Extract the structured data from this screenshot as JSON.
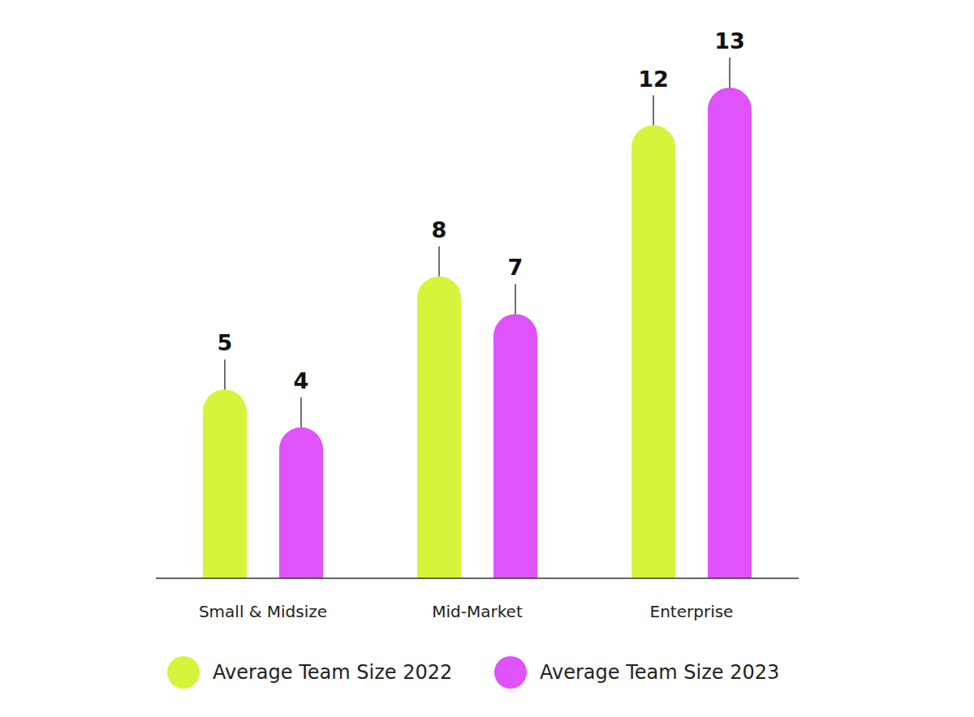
{
  "chart_data": {
    "type": "bar",
    "categories": [
      "Small & Midsize",
      "Mid-Market",
      "Enterprise"
    ],
    "series": [
      {
        "name": "Average Team Size 2022",
        "color": "#d4f53c",
        "values": [
          5,
          8,
          12
        ]
      },
      {
        "name": "Average Team Size 2023",
        "color": "#e052fa",
        "values": [
          4,
          7,
          13
        ]
      }
    ],
    "ylim": [
      0,
      13
    ],
    "data_labels": true,
    "tick_labels": "x",
    "grid": false,
    "legend": "bottom"
  }
}
